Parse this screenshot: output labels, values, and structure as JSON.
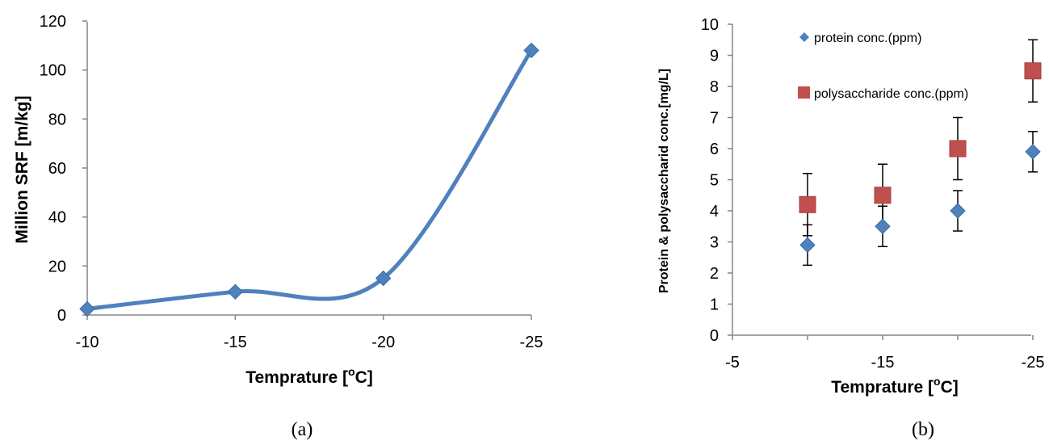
{
  "chart_data": [
    {
      "type": "line",
      "panel_label": "(a)",
      "title": "",
      "xlabel": "Temprature [",
      "xlabel_sup": "o",
      "xlabel_suffix": "C]",
      "ylabel": "Million SRF [m/kg]",
      "x_categories": [
        "-10",
        "-15",
        "-20",
        "-25"
      ],
      "ylim": [
        0,
        120
      ],
      "yticks": [
        "0",
        "20",
        "40",
        "60",
        "80",
        "100",
        "120"
      ],
      "series": [
        {
          "name": "",
          "color": "#4F81BD",
          "marker": "diamond",
          "smooth": true,
          "values": [
            2.5,
            9.5,
            15,
            108
          ]
        }
      ],
      "grid": false,
      "legend": "none"
    },
    {
      "type": "scatter",
      "panel_label": "(b)",
      "title": "",
      "xlabel": "Temprature [",
      "xlabel_sup": "o",
      "xlabel_suffix": "C]",
      "ylabel": "Protein & polysaccharid conc.[mg/L]",
      "xlim": [
        -5,
        -25
      ],
      "xticks": [
        "-5",
        "-15",
        "-25"
      ],
      "ylim": [
        0,
        10
      ],
      "yticks": [
        "0",
        "1",
        "2",
        "3",
        "4",
        "5",
        "6",
        "7",
        "8",
        "9",
        "10"
      ],
      "series": [
        {
          "name": "protein conc.(ppm)",
          "color": "#4F81BD",
          "marker": "diamond",
          "x": [
            -10,
            -15,
            -20,
            -25
          ],
          "y": [
            2.9,
            3.5,
            4.0,
            5.9
          ],
          "err": [
            0.65,
            0.65,
            0.65,
            0.65
          ]
        },
        {
          "name": "polysaccharide conc.(ppm)",
          "color": "#C0504D",
          "marker": "square",
          "x": [
            -10,
            -15,
            -20,
            -25
          ],
          "y": [
            4.2,
            4.5,
            6.0,
            8.5
          ],
          "err": [
            1.0,
            1.0,
            1.0,
            1.0
          ]
        }
      ],
      "grid": false,
      "legend": "top-left"
    }
  ]
}
